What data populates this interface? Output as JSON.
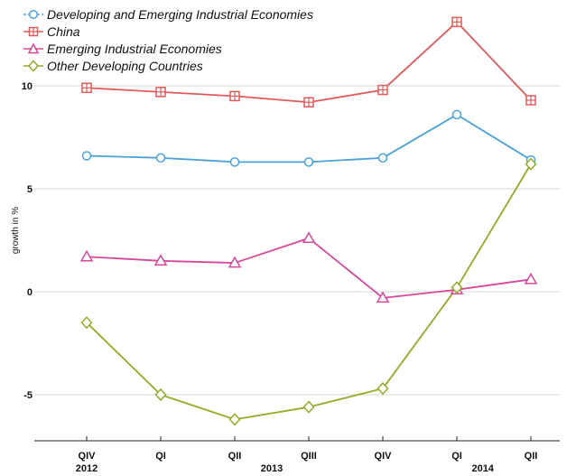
{
  "chart_data": {
    "type": "line",
    "title": "",
    "xlabel": "",
    "ylabel": "growth in %",
    "ylim": [
      -7,
      13
    ],
    "yticks": [
      10,
      5,
      0,
      -5
    ],
    "grid": true,
    "legend_position": "top-left",
    "categories": [
      "QIV",
      "QI",
      "QII",
      "QIII",
      "QIV",
      "QI",
      "QII"
    ],
    "year_labels": [
      {
        "label": "2012",
        "at": 0
      },
      {
        "label": "2013",
        "at": 2.5
      },
      {
        "label": "2014",
        "at": 5.35
      }
    ],
    "series": [
      {
        "name": "Developing and Emerging Industrial Economies",
        "color": "#4ba3d9",
        "marker": "circle",
        "values": [
          6.6,
          6.5,
          6.3,
          6.3,
          6.5,
          8.6,
          6.4
        ]
      },
      {
        "name": "China",
        "color": "#e05a5a",
        "marker": "square-plus",
        "values": [
          9.9,
          9.7,
          9.5,
          9.2,
          9.8,
          13.1,
          9.3
        ]
      },
      {
        "name": "Emerging Industrial Economies",
        "color": "#d8489a",
        "marker": "triangle",
        "values": [
          1.7,
          1.5,
          1.4,
          2.6,
          -0.3,
          0.1,
          0.6
        ]
      },
      {
        "name": "Other Developing Countries",
        "color": "#8fae27",
        "marker": "diamond",
        "values": [
          -1.5,
          -5.0,
          -6.2,
          -5.6,
          -4.7,
          0.2,
          6.2
        ]
      }
    ]
  }
}
